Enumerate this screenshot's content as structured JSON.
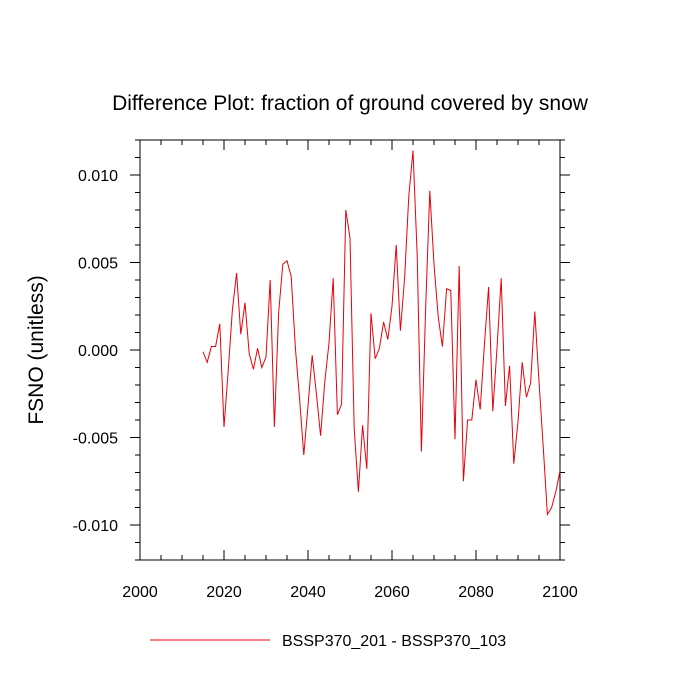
{
  "chart_data": {
    "type": "line",
    "title": "Difference Plot: fraction of ground covered by snow",
    "xlabel": "",
    "ylabel": "FSNO  (unitless)",
    "xlim": [
      2000,
      2100
    ],
    "ylim": [
      -0.012,
      0.012
    ],
    "x_ticks": [
      2000,
      2020,
      2040,
      2060,
      2080,
      2100
    ],
    "x_tick_labels": [
      "2000",
      "2020",
      "2040",
      "2060",
      "2080",
      "2100"
    ],
    "y_ticks": [
      -0.01,
      -0.005,
      0.0,
      0.005,
      0.01
    ],
    "y_tick_labels": [
      "-0.010",
      "-0.005",
      "0.000",
      "0.005",
      "0.010"
    ],
    "legend_position": "bottom",
    "series": [
      {
        "name": "BSSP370_201 - BSSP370_103",
        "color": "#e8000b",
        "x": [
          2015,
          2016,
          2017,
          2018,
          2019,
          2020,
          2021,
          2022,
          2023,
          2024,
          2025,
          2026,
          2027,
          2028,
          2029,
          2030,
          2031,
          2032,
          2033,
          2034,
          2035,
          2036,
          2037,
          2038,
          2039,
          2040,
          2041,
          2042,
          2043,
          2044,
          2045,
          2046,
          2047,
          2048,
          2049,
          2050,
          2051,
          2052,
          2053,
          2054,
          2055,
          2056,
          2057,
          2058,
          2059,
          2060,
          2061,
          2062,
          2063,
          2064,
          2065,
          2066,
          2067,
          2068,
          2069,
          2070,
          2071,
          2072,
          2073,
          2074,
          2075,
          2076,
          2077,
          2078,
          2079,
          2080,
          2081,
          2082,
          2083,
          2084,
          2085,
          2086,
          2087,
          2088,
          2089,
          2090,
          2091,
          2092,
          2093,
          2094,
          2095,
          2096,
          2097,
          2098,
          2099,
          2100
        ],
        "values": [
          -0.0001,
          -0.0007,
          0.0002,
          0.0002,
          0.0015,
          -0.0044,
          -0.0012,
          0.0023,
          0.0044,
          0.0009,
          0.0027,
          -0.0002,
          -0.0011,
          0.0001,
          -0.001,
          -0.0004,
          0.004,
          -0.0044,
          0.0021,
          0.0049,
          0.0051,
          0.0042,
          0.0001,
          -0.0028,
          -0.006,
          -0.0032,
          -0.0003,
          -0.0025,
          -0.0049,
          -0.0018,
          0.0004,
          0.0041,
          -0.0037,
          -0.0031,
          0.008,
          0.0064,
          -0.0045,
          -0.0081,
          -0.0043,
          -0.0068,
          0.0021,
          -0.0005,
          0.0001,
          0.0016,
          0.0006,
          0.0025,
          0.006,
          0.0011,
          0.0041,
          0.0088,
          0.0114,
          0.0054,
          -0.0058,
          0.0023,
          0.0091,
          0.0049,
          0.0019,
          0.0002,
          0.0035,
          0.0034,
          -0.0051,
          0.0048,
          -0.0075,
          -0.004,
          -0.004,
          -0.0017,
          -0.0034,
          0.0003,
          0.0036,
          -0.0035,
          0.0001,
          0.0041,
          -0.0032,
          -0.0009,
          -0.0065,
          -0.0041,
          -0.0007,
          -0.0027,
          -0.0019,
          0.0022,
          -0.0018,
          -0.0055,
          -0.0094,
          -0.009,
          -0.0081,
          -0.0069
        ]
      }
    ]
  }
}
